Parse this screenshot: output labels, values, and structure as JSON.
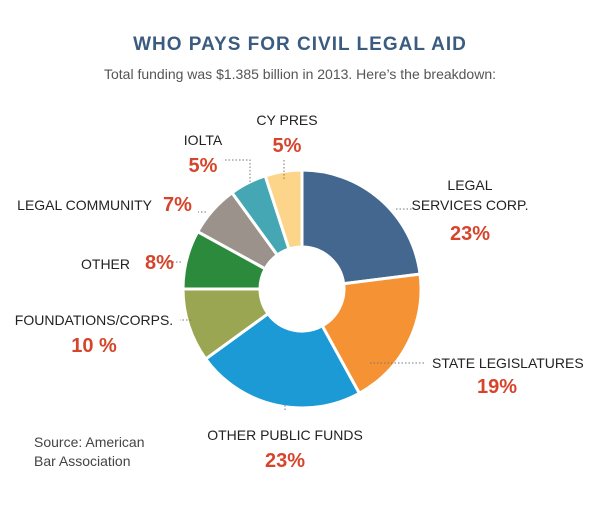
{
  "chart_data": {
    "type": "pie",
    "style": "donut",
    "title": "WHO PAYS FOR CIVIL LEGAL AID",
    "subtitle": "Total funding was $1.385 billion in 2013. Here’s the breakdown:",
    "source": [
      "Source: American",
      "Bar Association"
    ],
    "percent_color": "#d6452b",
    "slices": [
      {
        "label": [
          "LEGAL",
          "SERVICES CORP."
        ],
        "value": 23,
        "value_label": "23%",
        "color": "#43678f"
      },
      {
        "label": [
          "STATE LEGISLATURES"
        ],
        "value": 19,
        "value_label": "19%",
        "color": "#f59234"
      },
      {
        "label": [
          "OTHER PUBLIC FUNDS"
        ],
        "value": 23,
        "value_label": "23%",
        "color": "#1c9ad6"
      },
      {
        "label": [
          "FOUNDATIONS/CORPS."
        ],
        "value": 10,
        "value_label": "10 %",
        "color": "#9aa651"
      },
      {
        "label": [
          "OTHER"
        ],
        "value": 8,
        "value_label": "8%",
        "color": "#2b8a3c"
      },
      {
        "label": [
          "LEGAL COMMUNITY"
        ],
        "value": 7,
        "value_label": "7%",
        "color": "#9b938b"
      },
      {
        "label": [
          "IOLTA"
        ],
        "value": 5,
        "value_label": "5%",
        "color": "#44a7b3"
      },
      {
        "label": [
          "CY PRES"
        ],
        "value": 5,
        "value_label": "5%",
        "color": "#fdd58a"
      }
    ]
  }
}
